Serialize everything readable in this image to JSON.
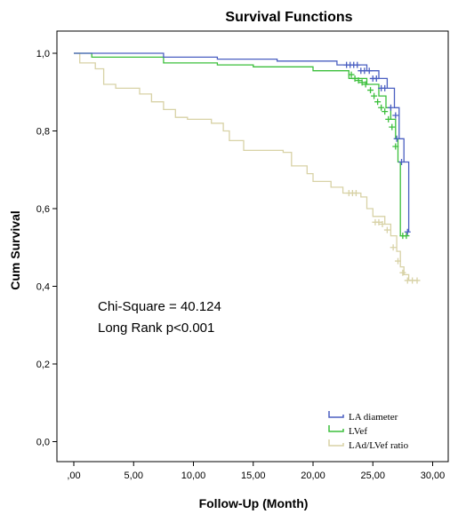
{
  "chart_data": {
    "type": "line",
    "title": "Survival Functions",
    "xlabel": "Follow-Up (Month)",
    "ylabel": "Cum Survival",
    "xlim": [
      0,
      30
    ],
    "ylim": [
      0,
      1
    ],
    "x_ticks": [
      ",00",
      "5,00",
      "10,00",
      "15,00",
      "20,00",
      "25,00",
      "30,00"
    ],
    "y_ticks": [
      "0,0",
      "0,2",
      "0,4",
      "0,6",
      "0,8",
      "1,0"
    ],
    "annotations": [
      "Chi-Square = 40.124",
      "Long Rank p<0.001"
    ],
    "legend_position": "bottom-right",
    "grid": false,
    "series": [
      {
        "name": "LA diameter",
        "color": "#4a5fc1",
        "steps": [
          [
            0,
            1.0
          ],
          [
            7.5,
            0.99
          ],
          [
            12,
            0.985
          ],
          [
            17,
            0.98
          ],
          [
            22,
            0.97
          ],
          [
            24.5,
            0.955
          ],
          [
            25.5,
            0.935
          ],
          [
            26.2,
            0.91
          ],
          [
            26.8,
            0.86
          ],
          [
            27.2,
            0.78
          ],
          [
            27.6,
            0.72
          ],
          [
            28.0,
            0.54
          ]
        ],
        "censored": [
          [
            22.8,
            0.97
          ],
          [
            23.1,
            0.97
          ],
          [
            23.4,
            0.97
          ],
          [
            23.7,
            0.97
          ],
          [
            24.0,
            0.955
          ],
          [
            24.3,
            0.955
          ],
          [
            24.7,
            0.955
          ],
          [
            25.0,
            0.935
          ],
          [
            25.3,
            0.935
          ],
          [
            25.7,
            0.91
          ],
          [
            26.0,
            0.91
          ],
          [
            26.5,
            0.86
          ],
          [
            26.9,
            0.84
          ],
          [
            27.0,
            0.78
          ],
          [
            27.4,
            0.72
          ],
          [
            27.9,
            0.54
          ]
        ]
      },
      {
        "name": "LVef",
        "color": "#3bbf3b",
        "steps": [
          [
            0,
            1.0
          ],
          [
            1.5,
            0.99
          ],
          [
            7.5,
            0.975
          ],
          [
            12,
            0.97
          ],
          [
            15,
            0.965
          ],
          [
            20,
            0.955
          ],
          [
            23,
            0.935
          ],
          [
            24.5,
            0.92
          ],
          [
            25.5,
            0.89
          ],
          [
            26.1,
            0.86
          ],
          [
            26.5,
            0.83
          ],
          [
            26.9,
            0.78
          ],
          [
            27.1,
            0.72
          ],
          [
            27.3,
            0.53
          ]
        ],
        "censored": [
          [
            23.2,
            0.945
          ],
          [
            23.5,
            0.935
          ],
          [
            23.8,
            0.93
          ],
          [
            24.1,
            0.925
          ],
          [
            24.4,
            0.92
          ],
          [
            24.8,
            0.905
          ],
          [
            25.1,
            0.89
          ],
          [
            25.4,
            0.875
          ],
          [
            25.7,
            0.86
          ],
          [
            26.0,
            0.85
          ],
          [
            26.3,
            0.83
          ],
          [
            26.6,
            0.81
          ],
          [
            26.9,
            0.76
          ],
          [
            27.5,
            0.53
          ],
          [
            27.8,
            0.53
          ]
        ]
      },
      {
        "name": "LAd/LVef ratio",
        "color": "#d8d2a6",
        "steps": [
          [
            0,
            1.0
          ],
          [
            0.5,
            0.975
          ],
          [
            1.8,
            0.96
          ],
          [
            2.5,
            0.92
          ],
          [
            3.5,
            0.91
          ],
          [
            5.5,
            0.895
          ],
          [
            6.5,
            0.875
          ],
          [
            7.5,
            0.855
          ],
          [
            8.5,
            0.835
          ],
          [
            9.5,
            0.83
          ],
          [
            11.5,
            0.82
          ],
          [
            12.5,
            0.8
          ],
          [
            13.0,
            0.775
          ],
          [
            14.2,
            0.75
          ],
          [
            15.0,
            0.75
          ],
          [
            17.5,
            0.745
          ],
          [
            18.2,
            0.71
          ],
          [
            19.5,
            0.69
          ],
          [
            20.0,
            0.67
          ],
          [
            21.5,
            0.655
          ],
          [
            22.5,
            0.64
          ],
          [
            24.0,
            0.63
          ],
          [
            24.5,
            0.6
          ],
          [
            25.0,
            0.58
          ],
          [
            26.0,
            0.56
          ],
          [
            26.5,
            0.53
          ],
          [
            27.0,
            0.49
          ],
          [
            27.3,
            0.45
          ],
          [
            27.6,
            0.43
          ],
          [
            28.0,
            0.415
          ]
        ],
        "censored": [
          [
            23.0,
            0.64
          ],
          [
            23.3,
            0.64
          ],
          [
            23.6,
            0.64
          ],
          [
            25.2,
            0.565
          ],
          [
            25.5,
            0.565
          ],
          [
            25.8,
            0.56
          ],
          [
            26.2,
            0.545
          ],
          [
            26.7,
            0.5
          ],
          [
            27.1,
            0.465
          ],
          [
            27.5,
            0.435
          ],
          [
            27.9,
            0.415
          ],
          [
            28.3,
            0.415
          ],
          [
            28.7,
            0.415
          ]
        ]
      }
    ]
  }
}
